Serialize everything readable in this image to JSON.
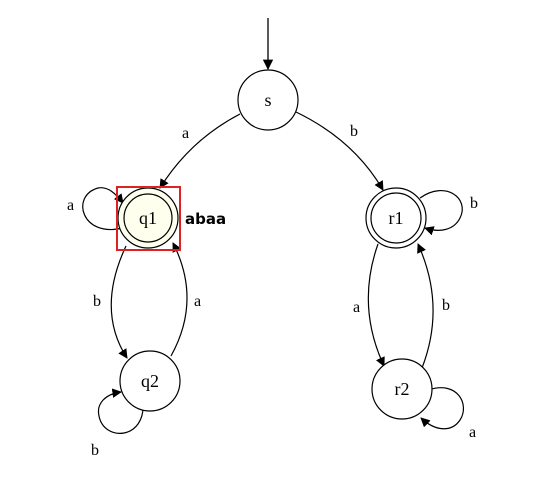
{
  "diagram": {
    "input_string": "abaa",
    "states": [
      {
        "id": "s",
        "label": "s",
        "accepting": false,
        "active": false
      },
      {
        "id": "q1",
        "label": "q1",
        "accepting": true,
        "active": true
      },
      {
        "id": "q2",
        "label": "q2",
        "accepting": false,
        "active": false
      },
      {
        "id": "r1",
        "label": "r1",
        "accepting": true,
        "active": false
      },
      {
        "id": "r2",
        "label": "r2",
        "accepting": false,
        "active": false
      }
    ],
    "initial_state": "s",
    "transitions": [
      {
        "from": "s",
        "to": "q1",
        "label": "a"
      },
      {
        "from": "s",
        "to": "r1",
        "label": "b"
      },
      {
        "from": "q1",
        "to": "q1",
        "label": "a"
      },
      {
        "from": "q1",
        "to": "q2",
        "label": "b"
      },
      {
        "from": "q2",
        "to": "q1",
        "label": "a"
      },
      {
        "from": "q2",
        "to": "q2",
        "label": "b"
      },
      {
        "from": "r1",
        "to": "r1",
        "label": "b"
      },
      {
        "from": "r1",
        "to": "r2",
        "label": "a"
      },
      {
        "from": "r2",
        "to": "r1",
        "label": "b"
      },
      {
        "from": "r2",
        "to": "r2",
        "label": "a"
      }
    ],
    "colors": {
      "stroke": "#000000",
      "active_fill": "#ffffee",
      "highlight_box": "#dd2222",
      "background": "#ffffff"
    }
  }
}
